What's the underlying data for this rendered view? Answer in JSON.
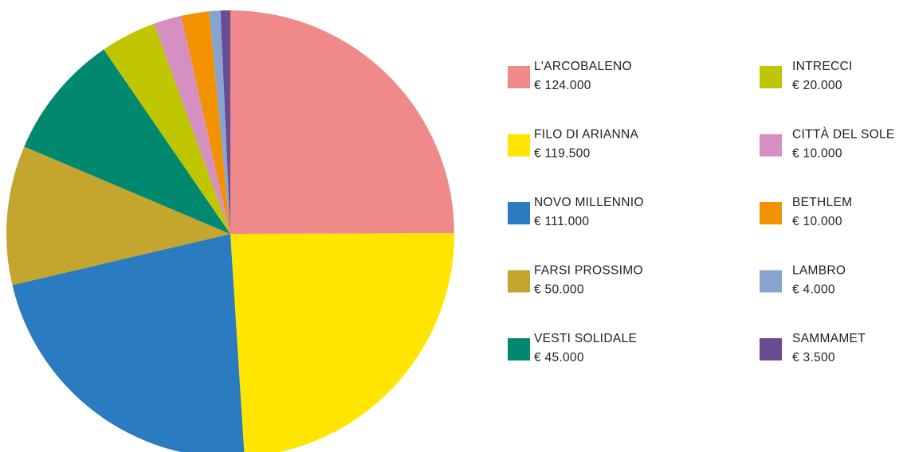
{
  "chart_data": {
    "type": "pie",
    "categories": [
      "L'ARCOBALENO",
      "FILO DI ARIANNA",
      "NOVO MILLENNIO",
      "FARSI PROSSIMO",
      "VESTI SOLIDALE",
      "INTRECCI",
      "CITTÀ DEL SOLE",
      "BETHLEM",
      "LAMBRO",
      "SAMMAMET"
    ],
    "values": [
      124000,
      119500,
      111000,
      50000,
      45000,
      20000,
      10000,
      10000,
      4000,
      3500
    ],
    "value_labels": [
      "€ 124.000",
      "€ 119.500",
      "€ 111.000",
      "€ 50.000",
      "€ 45.000",
      "€ 20.000",
      "€ 10.000",
      "€ 10.000",
      "€ 4.000",
      "€ 3.500"
    ],
    "colors": [
      "#f08a8a",
      "#ffe500",
      "#2a7bbf",
      "#c4a52e",
      "#00896f",
      "#bfc600",
      "#d68fc1",
      "#f39200",
      "#87a3cf",
      "#6a4c93"
    ],
    "legend": "right"
  }
}
